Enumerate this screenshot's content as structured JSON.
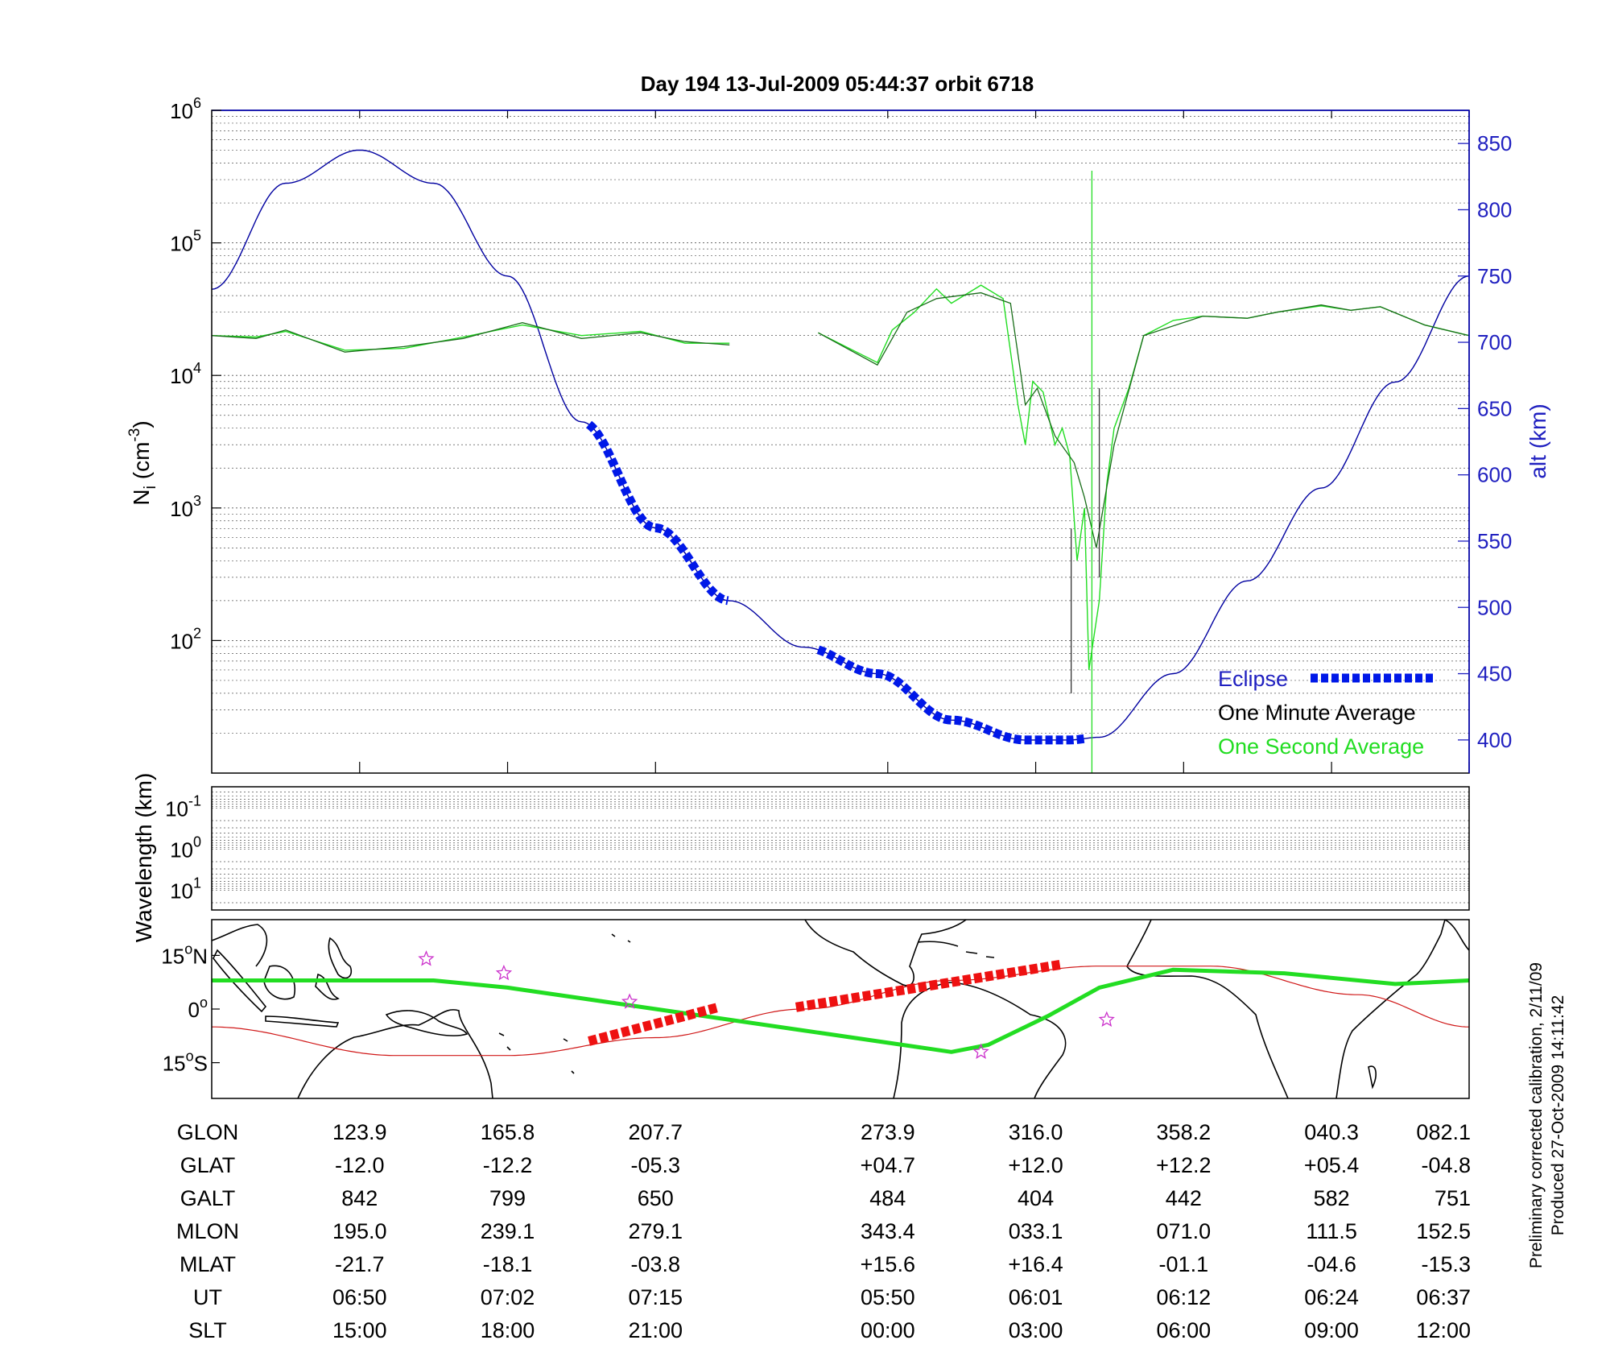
{
  "title": "Day 194  13-Jul-2009 05:44:37   orbit 6718",
  "colors": {
    "orbit": "#0000a0",
    "minute": "#1a6e1a",
    "second": "#22dd22",
    "eclipse": "#0018e8",
    "map_track": "#22dd22",
    "map_mag": "#d01818",
    "map_eclipse": "#ee1111",
    "star": "#cc33cc",
    "right_axis": "#2020c0"
  },
  "chart_data": [
    {
      "type": "line",
      "name": "density",
      "ylabel_main": "N",
      "ylabel_sub": "i",
      "ylabel_unit": "(cm",
      "ylabel_unit_exp": "-3",
      "ylabel_unit_close": ")",
      "yscale": "log",
      "ylim": [
        10,
        1000000
      ],
      "left_ticks": [
        {
          "base": "10",
          "exp": "6",
          "value": 1000000
        },
        {
          "base": "10",
          "exp": "5",
          "value": 100000
        },
        {
          "base": "10",
          "exp": "4",
          "value": 10000
        },
        {
          "base": "10",
          "exp": "3",
          "value": 1000
        },
        {
          "base": "10",
          "exp": "2",
          "value": 100
        }
      ],
      "right_axis": {
        "label": "alt (km)",
        "ticks": [
          400,
          450,
          500,
          550,
          600,
          650,
          700,
          750,
          800,
          850
        ],
        "range": [
          375,
          875
        ]
      },
      "x_range": [
        0,
        8.5
      ],
      "x_tick_positions": [
        1,
        2,
        3,
        4.57,
        5.57,
        6.57,
        7.57,
        8.5
      ],
      "legend": [
        {
          "label": "Eclipse"
        },
        {
          "label": "One Minute Average"
        },
        {
          "label": "One Second Average"
        }
      ],
      "altitude_km": {
        "x": [
          0,
          0.5,
          1,
          1.5,
          2,
          2.5,
          3,
          3.5,
          4,
          4.5,
          5,
          5.5,
          5.8,
          6,
          6.5,
          7,
          7.5,
          8,
          8.5
        ],
        "y": [
          740,
          820,
          845,
          820,
          750,
          640,
          560,
          505,
          470,
          450,
          415,
          400,
          400,
          402,
          450,
          520,
          590,
          670,
          750
        ]
      },
      "minute_average": [
        {
          "x": [
            0,
            0.3,
            0.5,
            0.9,
            1.3,
            1.7,
            2.1,
            2.5,
            2.9,
            3.2,
            3.5
          ],
          "y": [
            20000,
            19000,
            22000,
            15000,
            16500,
            19000,
            25000,
            19000,
            21000,
            18000,
            17000
          ]
        },
        {
          "x": [
            4.1,
            4.5,
            4.7,
            4.9,
            5.2,
            5.4,
            5.5,
            5.58,
            5.7,
            5.83,
            5.9,
            5.98,
            6.1,
            6.3,
            6.7,
            7.0,
            7.2,
            7.5,
            7.7,
            7.9,
            8.2,
            8.5
          ],
          "y": [
            21000,
            12000,
            30000,
            38000,
            42000,
            35000,
            6000,
            8000,
            3500,
            2200,
            1200,
            500,
            3000,
            20000,
            28000,
            27000,
            30000,
            34000,
            31000,
            33000,
            24000,
            20000
          ]
        }
      ],
      "second_average": [
        {
          "x": [
            0,
            0.3,
            0.5,
            0.9,
            1.3,
            1.7,
            2.1,
            2.5,
            2.9,
            3.2,
            3.5
          ],
          "y": [
            20000,
            19500,
            21500,
            15500,
            16000,
            19500,
            24000,
            20000,
            21500,
            17500,
            17500
          ]
        },
        {
          "x": [
            4.1,
            4.5,
            4.6,
            4.75,
            4.9,
            5.0,
            5.2,
            5.35,
            5.45,
            5.5,
            5.55,
            5.62,
            5.7,
            5.75,
            5.8,
            5.85,
            5.9,
            5.93,
            6.0,
            6.05,
            6.1,
            6.2,
            6.3,
            6.5,
            6.7,
            7.0,
            7.2,
            7.5,
            7.7,
            7.9,
            8.2,
            8.5
          ],
          "y": [
            21000,
            12500,
            22000,
            30000,
            45000,
            35000,
            48000,
            38000,
            6000,
            3000,
            9000,
            7500,
            3000,
            4000,
            2500,
            400,
            1000,
            60,
            200,
            1500,
            4000,
            8000,
            20000,
            26000,
            28000,
            27000,
            30000,
            33500,
            31000,
            33000,
            24000,
            20000
          ]
        }
      ],
      "spikes": [
        {
          "x": 5.95,
          "y0": 10,
          "y1": 350000
        },
        {
          "x": 5.81,
          "y0": 40,
          "y1": 700
        },
        {
          "x": 6.0,
          "y0": 300,
          "y1": 8000
        }
      ],
      "eclipse_segments": [
        {
          "x0": 2.55,
          "x1": 3.5
        },
        {
          "x0": 4.1,
          "x1": 5.9
        }
      ]
    },
    {
      "type": "heatmap",
      "name": "wavelength",
      "ylabel": "Wavelength (km)",
      "yscale": "log",
      "ticks": [
        {
          "base": "10",
          "exp": "-1",
          "value": 0.1
        },
        {
          "base": "10",
          "exp": "0",
          "value": 1
        },
        {
          "base": "10",
          "exp": "1",
          "value": 10
        }
      ],
      "ylim": [
        0.03,
        30
      ],
      "values": []
    },
    {
      "type": "line",
      "name": "ground_track_map",
      "y_ticks": [
        {
          "value": 15,
          "label": "15",
          "deg": "o",
          "hemi": "N"
        },
        {
          "value": 0,
          "label": "0",
          "deg": "o",
          "hemi": ""
        },
        {
          "value": -15,
          "label": "15",
          "deg": "o",
          "hemi": "S"
        }
      ],
      "lon_range": [
        90,
        430
      ],
      "lat_range": [
        -25,
        25
      ],
      "ground_track": {
        "lon": [
          90,
          150,
          170,
          210,
          250,
          290,
          300,
          316,
          330,
          350,
          380,
          410,
          430
        ],
        "lat": [
          8,
          8,
          6,
          0,
          -6,
          -12,
          -10,
          -2,
          6,
          11,
          10,
          7,
          8
        ]
      },
      "magnetic_equator": {
        "lon": [
          90,
          140,
          170,
          210,
          250,
          290,
          330,
          360,
          400,
          430
        ],
        "lat": [
          -5,
          -13,
          -13,
          -8,
          0,
          8,
          12,
          12,
          4,
          -5
        ]
      },
      "eclipse_segments": [
        {
          "lon": [
            192,
            227
          ],
          "lat": [
            -9,
            0.5
          ]
        },
        {
          "lon": [
            248,
            320
          ],
          "lat": [
            0.5,
            12.5
          ]
        }
      ],
      "stars": [
        {
          "lon": 148,
          "lat": 14
        },
        {
          "lon": 169,
          "lat": 10
        },
        {
          "lon": 203,
          "lat": 2
        },
        {
          "lon": 298,
          "lat": -12
        },
        {
          "lon": 332,
          "lat": -3
        }
      ]
    }
  ],
  "table": {
    "columns_x": [
      1,
      2,
      3,
      4.57,
      5.57,
      6.57,
      7.57,
      8.5
    ],
    "rows": [
      {
        "label": "GLON",
        "values": [
          "123.9",
          "165.8",
          "207.7",
          "273.9",
          "316.0",
          "358.2",
          "040.3",
          "082.1"
        ]
      },
      {
        "label": "GLAT",
        "values": [
          "-12.0",
          "-12.2",
          "-05.3",
          "+04.7",
          "+12.0",
          "+12.2",
          "+05.4",
          "-04.8"
        ]
      },
      {
        "label": "GALT",
        "values": [
          "842",
          "799",
          "650",
          "484",
          "404",
          "442",
          "582",
          "751"
        ]
      },
      {
        "label": "MLON",
        "values": [
          "195.0",
          "239.1",
          "279.1",
          "343.4",
          "033.1",
          "071.0",
          "111.5",
          "152.5"
        ]
      },
      {
        "label": "MLAT",
        "values": [
          "-21.7",
          "-18.1",
          "-03.8",
          "+15.6",
          "+16.4",
          "-01.1",
          "-04.6",
          "-15.3"
        ]
      },
      {
        "label": "UT",
        "values": [
          "06:50",
          "07:02",
          "07:15",
          "05:50",
          "06:01",
          "06:12",
          "06:24",
          "06:37"
        ]
      },
      {
        "label": "SLT",
        "values": [
          "15:00",
          "18:00",
          "21:00",
          "00:00",
          "03:00",
          "06:00",
          "09:00",
          "12:00"
        ]
      }
    ]
  },
  "credits": {
    "line1": "Preliminary corrected calibration, 2/11/09",
    "line2": "Produced 27-Oct-2009 14:11:42"
  }
}
